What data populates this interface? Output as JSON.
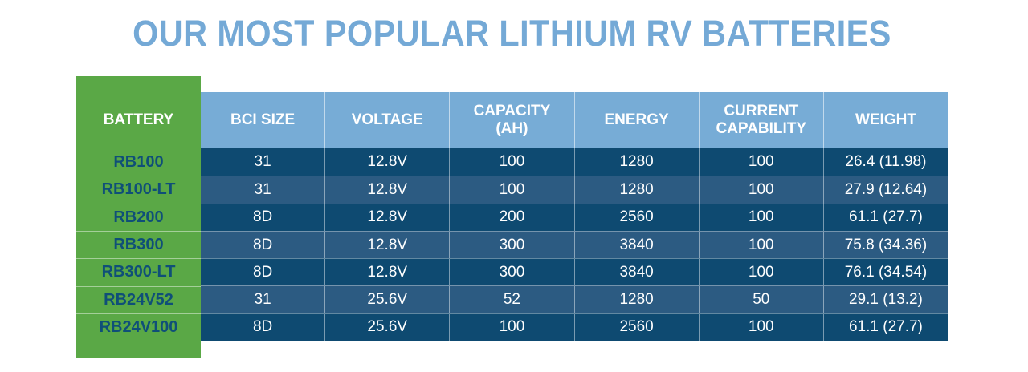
{
  "title": "OUR MOST POPULAR LITHIUM RV BATTERIES",
  "table": {
    "first_header": "BATTERY",
    "headers": [
      "BCI SIZE",
      "VOLTAGE",
      "CAPACITY\n(AH)",
      "ENERGY",
      "CURRENT\nCAPABILITY",
      "WEIGHT"
    ],
    "rows": [
      {
        "battery": "RB100",
        "cells": [
          "31",
          "12.8V",
          "100",
          "1280",
          "100",
          "26.4 (11.98)"
        ]
      },
      {
        "battery": "RB100-LT",
        "cells": [
          "31",
          "12.8V",
          "100",
          "1280",
          "100",
          "27.9 (12.64)"
        ]
      },
      {
        "battery": "RB200",
        "cells": [
          "8D",
          "12.8V",
          "200",
          "2560",
          "100",
          "61.1 (27.7)"
        ]
      },
      {
        "battery": "RB300",
        "cells": [
          "8D",
          "12.8V",
          "300",
          "3840",
          "100",
          "75.8 (34.36)"
        ]
      },
      {
        "battery": "RB300-LT",
        "cells": [
          "8D",
          "12.8V",
          "300",
          "3840",
          "100",
          "76.1 (34.54)"
        ]
      },
      {
        "battery": "RB24V52",
        "cells": [
          "31",
          "25.6V",
          "52",
          "1280",
          "50",
          "29.1 (13.2)"
        ]
      },
      {
        "battery": "RB24V100",
        "cells": [
          "8D",
          "25.6V",
          "100",
          "2560",
          "100",
          "61.1 (27.7)"
        ]
      }
    ]
  },
  "colors": {
    "title": "#74a9d6",
    "battery_column": "#5aa846",
    "header_band": "#77acd6",
    "row_dark": "#0e4a71",
    "row_mid": "#2c5b82",
    "battery_text": "#0f4f78"
  }
}
